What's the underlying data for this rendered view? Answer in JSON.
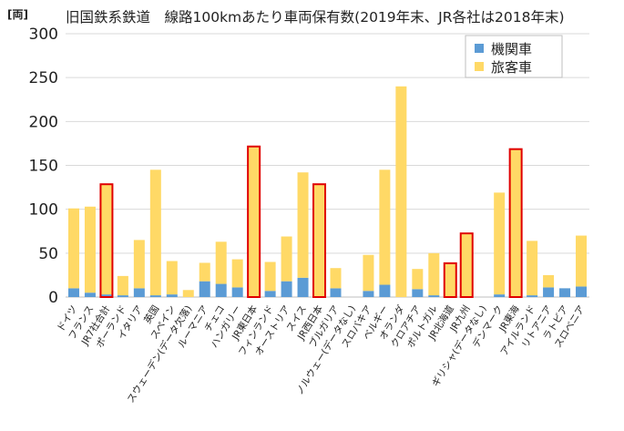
{
  "chart_data": {
    "type": "bar",
    "stacked": true,
    "title": "旧国鉄系鉄道　線路100kmあたり車両保有数(2019年末、JR各社は2018年末)",
    "ylabel": "[両]",
    "ylim": [
      0,
      300
    ],
    "yticks": [
      0,
      50,
      100,
      150,
      200,
      250,
      300
    ],
    "grid": true,
    "legend_position": "top-right",
    "categories": [
      "ドイツ",
      "フランス",
      "JR7社合計",
      "ポーランド",
      "イタリア",
      "英国",
      "スペイン",
      "スウェーデン(データ欠落)",
      "ルーマニア",
      "チェコ",
      "ハンガリー",
      "JR東日本",
      "フィンランド",
      "オーストリア",
      "スイス",
      "JR西日本",
      "ブルガリア",
      "ノルウェー(データなし)",
      "スロバキア",
      "ベルギー",
      "オランダ",
      "クロアチア",
      "ポルトガル",
      "JR北海道",
      "JR九州",
      "ギリシャ(データなし)",
      "デンマーク",
      "JR東海",
      "アイルランド",
      "リトアニア",
      "ラトビア",
      "スロベニア"
    ],
    "highlighted": [
      "JR7社合計",
      "JR東日本",
      "JR西日本",
      "JR北海道",
      "JR九州",
      "JR東海"
    ],
    "series": [
      {
        "name": "機関車",
        "color": "#5b9bd5",
        "values": [
          10,
          5,
          3,
          2,
          10,
          2,
          3,
          0,
          18,
          15,
          11,
          1,
          7,
          18,
          22,
          1,
          10,
          0,
          7,
          14,
          0,
          9,
          2,
          1,
          1,
          0,
          3,
          1,
          2,
          11,
          10,
          12
        ]
      },
      {
        "name": "旅客車",
        "color": "#ffd966",
        "values": [
          91,
          98,
          125,
          22,
          55,
          143,
          38,
          8,
          21,
          48,
          32,
          170,
          33,
          51,
          120,
          127,
          23,
          0,
          41,
          131,
          240,
          23,
          48,
          37,
          71,
          0,
          116,
          167,
          62,
          14,
          0,
          58
        ]
      }
    ]
  }
}
